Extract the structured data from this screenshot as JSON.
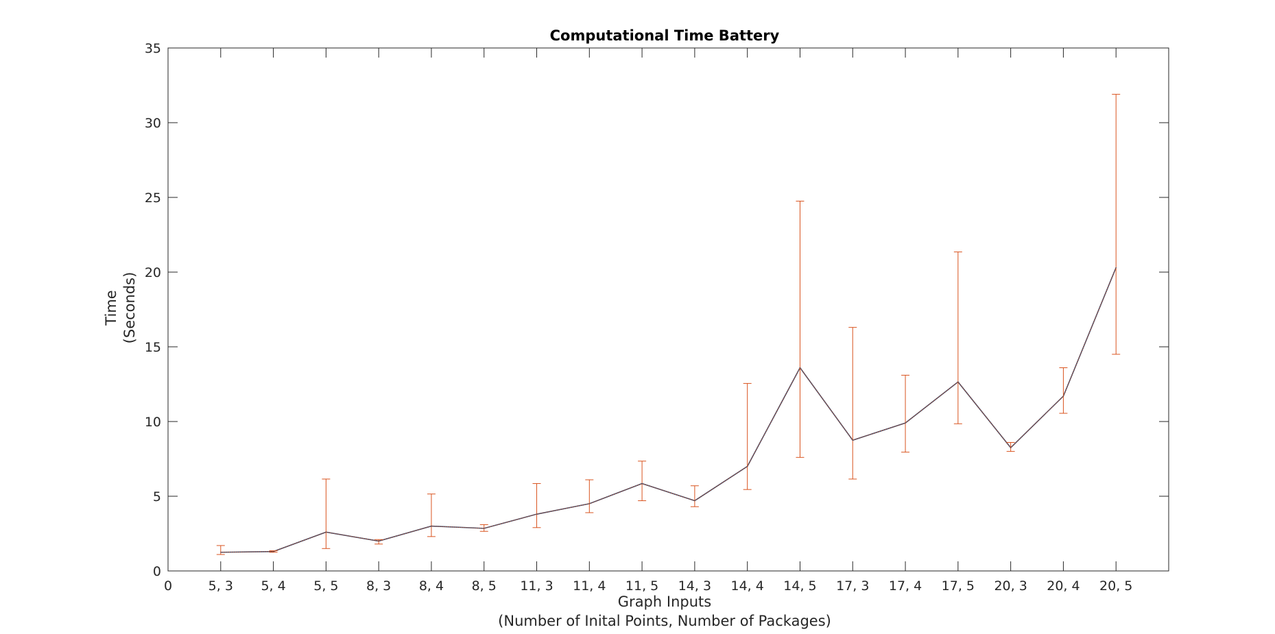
{
  "chart_data": {
    "type": "line",
    "title": "Computational Time Battery",
    "xlabel": [
      "Graph Inputs",
      "(Number of Inital Points, Number of Packages)"
    ],
    "ylabel": [
      "Time",
      "(Seconds)"
    ],
    "x_tick_labels": [
      "0",
      "5, 3",
      "5, 4",
      "5, 5",
      "8, 3",
      "8, 4",
      "8, 5",
      "11, 3",
      "11, 4",
      "11, 5",
      "14, 3",
      "14, 4",
      "14, 5",
      "17, 3",
      "17, 4",
      "17, 5",
      "20, 3",
      "20, 4",
      "20, 5"
    ],
    "xlim": [
      0,
      19
    ],
    "ylim": [
      0,
      35
    ],
    "y_ticks": [
      0,
      5,
      10,
      15,
      20,
      25,
      30,
      35
    ],
    "grid": false,
    "categories": [
      "5, 3",
      "5, 4",
      "5, 5",
      "8, 3",
      "8, 4",
      "8, 5",
      "11, 3",
      "11, 4",
      "11, 5",
      "14, 3",
      "14, 4",
      "14, 5",
      "17, 3",
      "17, 4",
      "17, 5",
      "20, 3",
      "20, 4",
      "20, 5"
    ],
    "series": [
      {
        "values": [
          1.25,
          1.3,
          2.6,
          2.0,
          3.0,
          2.85,
          3.8,
          4.5,
          5.85,
          4.7,
          7.0,
          13.6,
          8.75,
          9.9,
          12.65,
          8.25,
          11.7,
          20.3
        ],
        "error_lower": [
          1.1,
          1.25,
          1.5,
          1.8,
          2.3,
          2.65,
          2.9,
          3.9,
          4.7,
          4.3,
          5.45,
          7.6,
          6.15,
          7.95,
          9.85,
          8.0,
          10.55,
          14.5
        ],
        "error_upper": [
          1.7,
          1.35,
          6.15,
          2.1,
          5.15,
          3.1,
          5.85,
          6.1,
          7.35,
          5.7,
          12.55,
          24.75,
          16.3,
          13.1,
          21.35,
          8.6,
          13.6,
          31.9
        ],
        "line_color": "#3a4a6b",
        "error_color": "#d9531e"
      }
    ]
  }
}
